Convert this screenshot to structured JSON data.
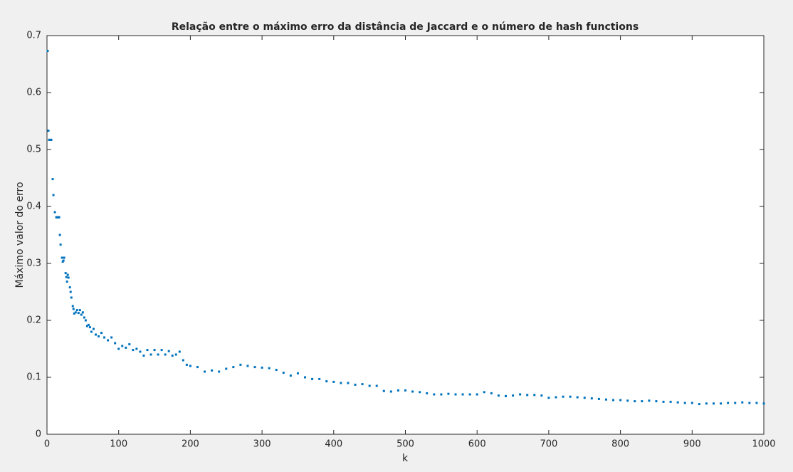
{
  "chart_data": {
    "type": "scatter",
    "title": "Relação entre o máximo erro da distância de Jaccard e o número de hash functions",
    "xlabel": "k",
    "ylabel": "Máximo valor do erro",
    "color": "#0072bd",
    "x": [
      1,
      2,
      3,
      4,
      5,
      6,
      8,
      9,
      11,
      13,
      14,
      15,
      16,
      17,
      18,
      19,
      21,
      22,
      23,
      24,
      26,
      27,
      28,
      29,
      30,
      32,
      33,
      34,
      36,
      37,
      38,
      40,
      42,
      44,
      46,
      48,
      50,
      52,
      54,
      56,
      58,
      60,
      62,
      65,
      68,
      72,
      76,
      80,
      85,
      90,
      95,
      100,
      105,
      110,
      115,
      120,
      125,
      130,
      135,
      140,
      145,
      150,
      155,
      160,
      165,
      170,
      175,
      180,
      185,
      190,
      195,
      200,
      210,
      220,
      230,
      240,
      250,
      260,
      270,
      280,
      290,
      300,
      310,
      320,
      330,
      340,
      350,
      360,
      370,
      380,
      390,
      400,
      410,
      420,
      430,
      440,
      450,
      460,
      470,
      480,
      490,
      500,
      510,
      520,
      530,
      540,
      550,
      560,
      570,
      580,
      590,
      600,
      610,
      620,
      630,
      640,
      650,
      660,
      670,
      680,
      690,
      700,
      710,
      720,
      730,
      740,
      750,
      760,
      770,
      780,
      790,
      800,
      810,
      820,
      830,
      840,
      850,
      860,
      870,
      880,
      890,
      900,
      910,
      920,
      930,
      940,
      950,
      960,
      970,
      980,
      990,
      1000
    ],
    "values": [
      0.673,
      0.533,
      0.517,
      0.517,
      0.517,
      0.517,
      0.448,
      0.42,
      0.39,
      0.381,
      0.381,
      0.381,
      0.381,
      0.381,
      0.35,
      0.333,
      0.31,
      0.303,
      0.305,
      0.31,
      0.283,
      0.276,
      0.268,
      0.28,
      0.275,
      0.258,
      0.25,
      0.24,
      0.225,
      0.22,
      0.212,
      0.214,
      0.218,
      0.213,
      0.218,
      0.21,
      0.214,
      0.205,
      0.2,
      0.19,
      0.192,
      0.188,
      0.18,
      0.185,
      0.175,
      0.172,
      0.178,
      0.17,
      0.165,
      0.17,
      0.16,
      0.15,
      0.155,
      0.152,
      0.158,
      0.148,
      0.15,
      0.145,
      0.138,
      0.148,
      0.14,
      0.148,
      0.14,
      0.148,
      0.14,
      0.146,
      0.138,
      0.14,
      0.145,
      0.13,
      0.122,
      0.12,
      0.118,
      0.11,
      0.112,
      0.11,
      0.115,
      0.118,
      0.122,
      0.12,
      0.118,
      0.117,
      0.116,
      0.113,
      0.108,
      0.103,
      0.107,
      0.1,
      0.097,
      0.097,
      0.093,
      0.092,
      0.09,
      0.09,
      0.087,
      0.088,
      0.085,
      0.085,
      0.076,
      0.075,
      0.077,
      0.077,
      0.075,
      0.074,
      0.072,
      0.07,
      0.07,
      0.071,
      0.07,
      0.07,
      0.07,
      0.07,
      0.074,
      0.072,
      0.068,
      0.067,
      0.068,
      0.07,
      0.069,
      0.069,
      0.068,
      0.064,
      0.065,
      0.066,
      0.066,
      0.065,
      0.064,
      0.063,
      0.062,
      0.061,
      0.06,
      0.06,
      0.059,
      0.058,
      0.058,
      0.059,
      0.058,
      0.057,
      0.057,
      0.056,
      0.055,
      0.055,
      0.053,
      0.054,
      0.054,
      0.054,
      0.055,
      0.055,
      0.056,
      0.055,
      0.055,
      0.054
    ],
    "xlim": [
      0,
      1000
    ],
    "xticks": [
      0,
      100,
      200,
      300,
      400,
      500,
      600,
      700,
      800,
      900,
      1000
    ],
    "ylim": [
      0,
      0.7
    ],
    "yticks": [
      0,
      0.1,
      0.2,
      0.3,
      0.4,
      0.5,
      0.6,
      0.7
    ]
  }
}
